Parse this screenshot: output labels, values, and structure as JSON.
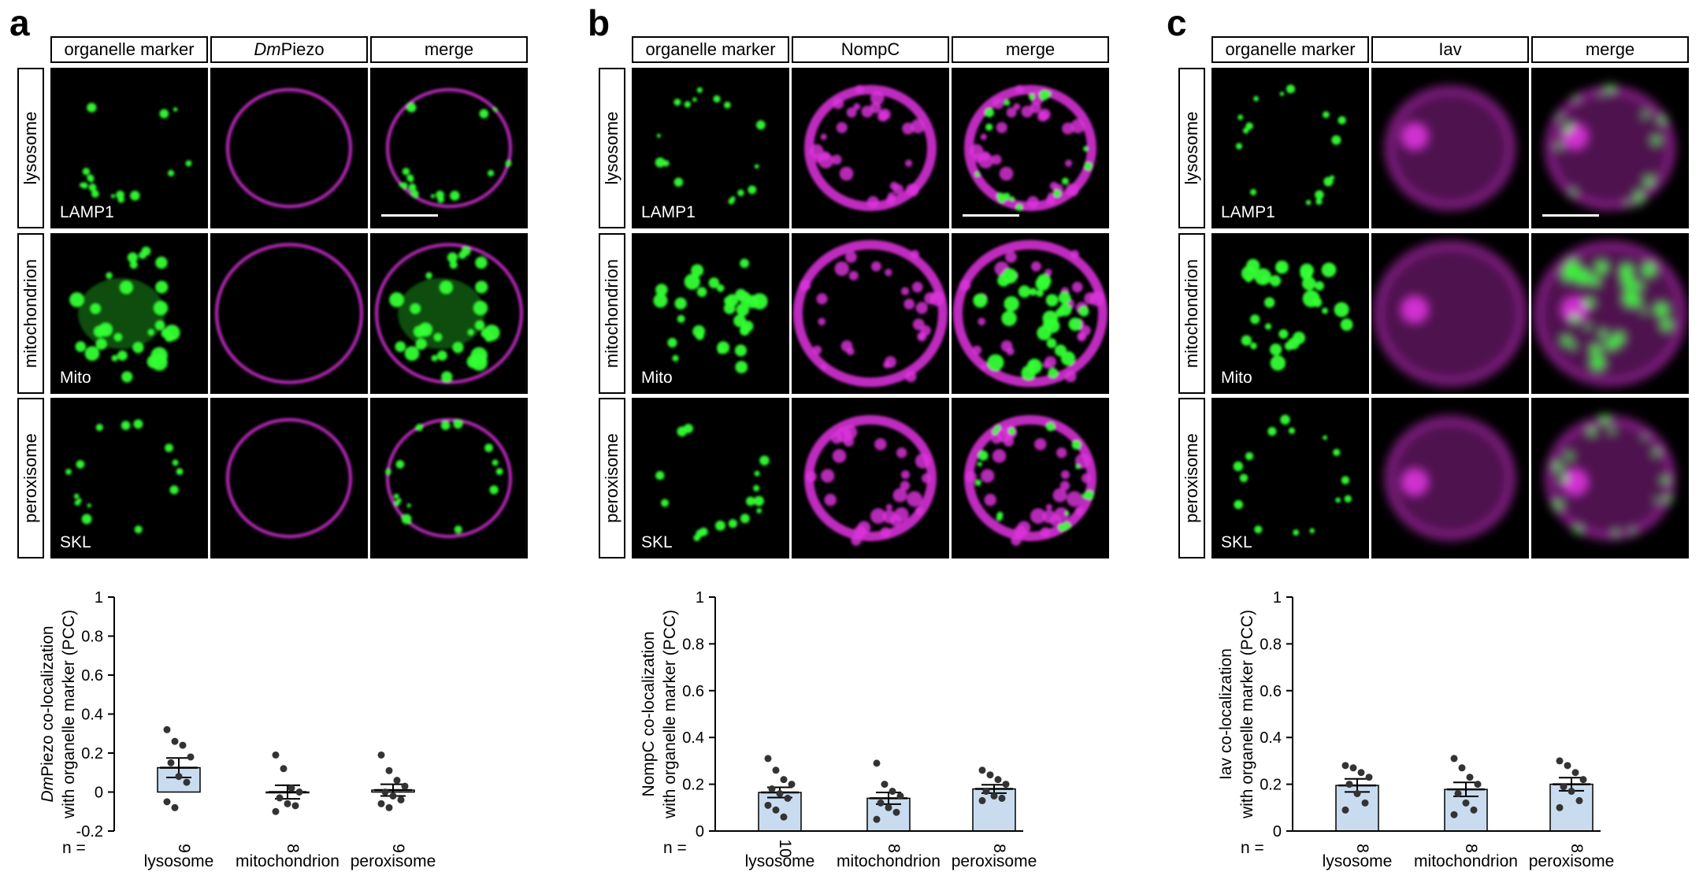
{
  "figure": {
    "panels": [
      {
        "letter": "a",
        "columns": [
          "organelle marker",
          "Piezo",
          "merge"
        ],
        "column_italic_prefix": [
          "",
          "Dm",
          ""
        ],
        "rows": [
          "lysosome",
          "mitochondrion",
          "peroxisome"
        ],
        "markers": [
          "LAMP1",
          "Mito",
          "SKL"
        ],
        "colors": {
          "marker": "#33ff33",
          "channel": "#e033e0",
          "background": "#000000"
        }
      },
      {
        "letter": "b",
        "columns": [
          "organelle marker",
          "NompC",
          "merge"
        ],
        "column_italic_prefix": [
          "",
          "",
          ""
        ],
        "rows": [
          "lysosome",
          "mitochondrion",
          "peroxisome"
        ],
        "markers": [
          "LAMP1",
          "Mito",
          "SKL"
        ],
        "colors": {
          "marker": "#33ff33",
          "channel": "#e033e0",
          "background": "#000000"
        }
      },
      {
        "letter": "c",
        "columns": [
          "organelle marker",
          "Iav",
          "merge"
        ],
        "column_italic_prefix": [
          "",
          "",
          ""
        ],
        "rows": [
          "lysosome",
          "mitochondrion",
          "peroxisome"
        ],
        "markers": [
          "LAMP1",
          "Mito",
          "SKL"
        ],
        "colors": {
          "marker": "#33ff33",
          "channel": "#e033e0",
          "background": "#000000"
        }
      }
    ]
  },
  "chart_data": [
    {
      "type": "bar",
      "title": "",
      "ylabel_italic_prefix": "Dm",
      "ylabel_line1": "Piezo co-localization",
      "ylabel_line2": "with organelle marker (PCC)",
      "categories": [
        "lysosome",
        "mitochondrion",
        "peroxisome"
      ],
      "n_label": "n =",
      "n": [
        "9",
        "8",
        "9"
      ],
      "values": [
        0.125,
        0.0,
        0.01
      ],
      "sem": [
        0.05,
        0.035,
        0.03
      ],
      "points": [
        [
          0.32,
          0.26,
          0.24,
          0.18,
          0.15,
          0.08,
          0.05,
          -0.05,
          -0.08
        ],
        [
          0.19,
          0.12,
          0.02,
          0.0,
          -0.03,
          -0.06,
          -0.07,
          -0.1
        ],
        [
          0.19,
          0.11,
          0.06,
          0.03,
          0.0,
          -0.02,
          -0.04,
          -0.06,
          -0.08
        ]
      ],
      "ylim": [
        -0.2,
        1
      ],
      "yticks": [
        "-0.2",
        "0",
        "0.2",
        "0.4",
        "0.6",
        "0.8",
        "1"
      ],
      "bar_color": "#c9dcef"
    },
    {
      "type": "bar",
      "title": "",
      "ylabel_italic_prefix": "",
      "ylabel_line1": "NompC co-localization",
      "ylabel_line2": "with organelle marker (PCC)",
      "categories": [
        "lysosome",
        "mitochondrion",
        "peroxisome"
      ],
      "n_label": "n =",
      "n": [
        "10",
        "8",
        "8"
      ],
      "values": [
        0.165,
        0.14,
        0.18
      ],
      "sem": [
        0.022,
        0.025,
        0.018
      ],
      "points": [
        [
          0.31,
          0.26,
          0.22,
          0.2,
          0.18,
          0.16,
          0.14,
          0.11,
          0.09,
          0.06
        ],
        [
          0.29,
          0.2,
          0.17,
          0.15,
          0.12,
          0.1,
          0.08,
          0.05
        ],
        [
          0.26,
          0.24,
          0.22,
          0.2,
          0.17,
          0.15,
          0.14,
          0.13
        ]
      ],
      "ylim": [
        0,
        1
      ],
      "yticks": [
        "0",
        "0.2",
        "0.4",
        "0.6",
        "0.8",
        "1"
      ],
      "bar_color": "#c9dcef"
    },
    {
      "type": "bar",
      "title": "",
      "ylabel_italic_prefix": "",
      "ylabel_line1": "Iav co-localization",
      "ylabel_line2": "with organelle marker (PCC)",
      "categories": [
        "lysosome",
        "mitochondrion",
        "peroxisome"
      ],
      "n_label": "n =",
      "n": [
        "8",
        "8",
        "8"
      ],
      "values": [
        0.195,
        0.178,
        0.2
      ],
      "sem": [
        0.028,
        0.03,
        0.028
      ],
      "points": [
        [
          0.28,
          0.27,
          0.25,
          0.23,
          0.2,
          0.16,
          0.12,
          0.09
        ],
        [
          0.31,
          0.27,
          0.23,
          0.2,
          0.16,
          0.12,
          0.09,
          0.07
        ],
        [
          0.3,
          0.28,
          0.25,
          0.22,
          0.19,
          0.17,
          0.13,
          0.1
        ]
      ],
      "ylim": [
        0,
        1
      ],
      "yticks": [
        "0",
        "0.2",
        "0.4",
        "0.6",
        "0.8",
        "1"
      ],
      "bar_color": "#c9dcef"
    }
  ]
}
